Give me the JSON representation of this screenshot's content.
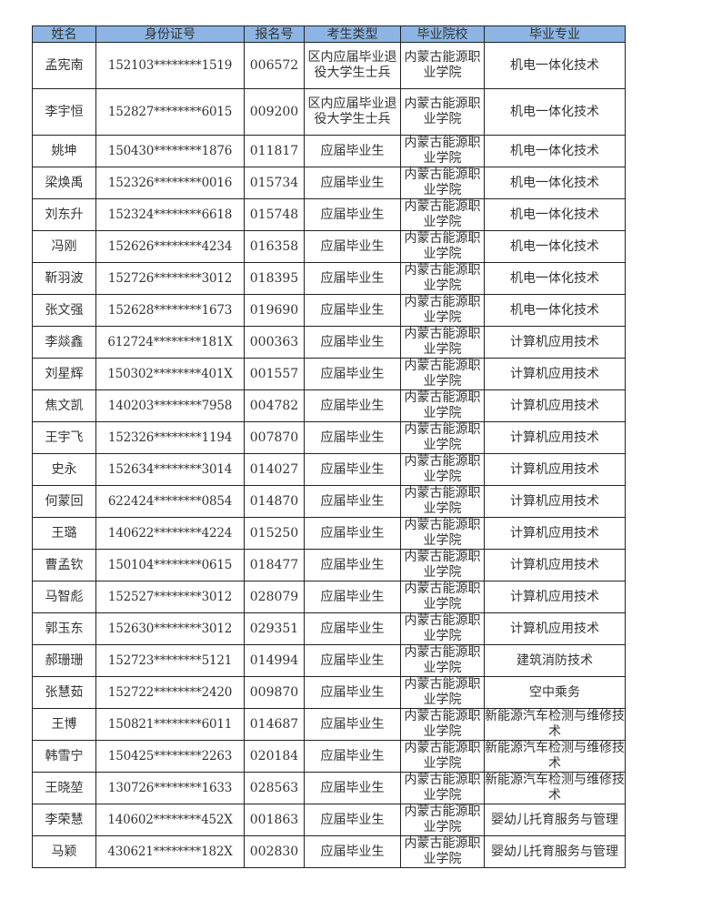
{
  "table": {
    "headers": [
      "姓名",
      "身份证号",
      "报名号",
      "考生类型",
      "毕业院校",
      "毕业专业"
    ],
    "header_color": "#8db4e2",
    "rows": [
      {
        "name": "孟宪南",
        "id": "152103********1519",
        "reg": "006572",
        "type": "区内应届毕业退役大学生士兵",
        "school": "内蒙古能源职业学院",
        "major": "机电一体化技术"
      },
      {
        "name": "李宇恒",
        "id": "152827********6015",
        "reg": "009200",
        "type": "区内应届毕业退役大学生士兵",
        "school": "内蒙古能源职业学院",
        "major": "机电一体化技术"
      },
      {
        "name": "姚坤",
        "id": "150430********1876",
        "reg": "011817",
        "type": "应届毕业生",
        "school": "内蒙古能源职业学院",
        "major": "机电一体化技术"
      },
      {
        "name": "梁焕禹",
        "id": "152326********0016",
        "reg": "015734",
        "type": "应届毕业生",
        "school": "内蒙古能源职业学院",
        "major": "机电一体化技术"
      },
      {
        "name": "刘东升",
        "id": "152324********6618",
        "reg": "015748",
        "type": "应届毕业生",
        "school": "内蒙古能源职业学院",
        "major": "机电一体化技术"
      },
      {
        "name": "冯刚",
        "id": "152626********4234",
        "reg": "016358",
        "type": "应届毕业生",
        "school": "内蒙古能源职业学院",
        "major": "机电一体化技术"
      },
      {
        "name": "靳羽波",
        "id": "152726********3012",
        "reg": "018395",
        "type": "应届毕业生",
        "school": "内蒙古能源职业学院",
        "major": "机电一体化技术"
      },
      {
        "name": "张文强",
        "id": "152628********1673",
        "reg": "019690",
        "type": "应届毕业生",
        "school": "内蒙古能源职业学院",
        "major": "机电一体化技术"
      },
      {
        "name": "李燚鑫",
        "id": "612724********181X",
        "reg": "000363",
        "type": "应届毕业生",
        "school": "内蒙古能源职业学院",
        "major": "计算机应用技术"
      },
      {
        "name": "刘星辉",
        "id": "150302********401X",
        "reg": "001557",
        "type": "应届毕业生",
        "school": "内蒙古能源职业学院",
        "major": "计算机应用技术"
      },
      {
        "name": "焦文凯",
        "id": "140203********7958",
        "reg": "004782",
        "type": "应届毕业生",
        "school": "内蒙古能源职业学院",
        "major": "计算机应用技术"
      },
      {
        "name": "王宇飞",
        "id": "152326********1194",
        "reg": "007870",
        "type": "应届毕业生",
        "school": "内蒙古能源职业学院",
        "major": "计算机应用技术"
      },
      {
        "name": "史永",
        "id": "152634********3014",
        "reg": "014027",
        "type": "应届毕业生",
        "school": "内蒙古能源职业学院",
        "major": "计算机应用技术"
      },
      {
        "name": "何蒙回",
        "id": "622424********0854",
        "reg": "014870",
        "type": "应届毕业生",
        "school": "内蒙古能源职业学院",
        "major": "计算机应用技术"
      },
      {
        "name": "王璐",
        "id": "140622********4224",
        "reg": "015250",
        "type": "应届毕业生",
        "school": "内蒙古能源职业学院",
        "major": "计算机应用技术"
      },
      {
        "name": "曹孟钦",
        "id": "150104********0615",
        "reg": "018477",
        "type": "应届毕业生",
        "school": "内蒙古能源职业学院",
        "major": "计算机应用技术"
      },
      {
        "name": "马智彪",
        "id": "152527********3012",
        "reg": "028079",
        "type": "应届毕业生",
        "school": "内蒙古能源职业学院",
        "major": "计算机应用技术"
      },
      {
        "name": "郭玉东",
        "id": "152630********3012",
        "reg": "029351",
        "type": "应届毕业生",
        "school": "内蒙古能源职业学院",
        "major": "计算机应用技术"
      },
      {
        "name": "郝珊珊",
        "id": "152723********5121",
        "reg": "014994",
        "type": "应届毕业生",
        "school": "内蒙古能源职业学院",
        "major": "建筑消防技术"
      },
      {
        "name": "张慧茹",
        "id": "152722********2420",
        "reg": "009870",
        "type": "应届毕业生",
        "school": "内蒙古能源职业学院",
        "major": "空中乘务"
      },
      {
        "name": "王博",
        "id": "150821********6011",
        "reg": "014687",
        "type": "应届毕业生",
        "school": "内蒙古能源职业学院",
        "major": "新能源汽车检测与维修技术"
      },
      {
        "name": "韩雪宁",
        "id": "150425********2263",
        "reg": "020184",
        "type": "应届毕业生",
        "school": "内蒙古能源职业学院",
        "major": "新能源汽车检测与维修技术"
      },
      {
        "name": "王晓堃",
        "id": "130726********1633",
        "reg": "028563",
        "type": "应届毕业生",
        "school": "内蒙古能源职业学院",
        "major": "新能源汽车检测与维修技术"
      },
      {
        "name": "李荣慧",
        "id": "140602********452X",
        "reg": "001863",
        "type": "应届毕业生",
        "school": "内蒙古能源职业学院",
        "major": "婴幼儿托育服务与管理"
      },
      {
        "name": "马颖",
        "id": "430621********182X",
        "reg": "002830",
        "type": "应届毕业生",
        "school": "内蒙古能源职业学院",
        "major": "婴幼儿托育服务与管理"
      }
    ]
  }
}
